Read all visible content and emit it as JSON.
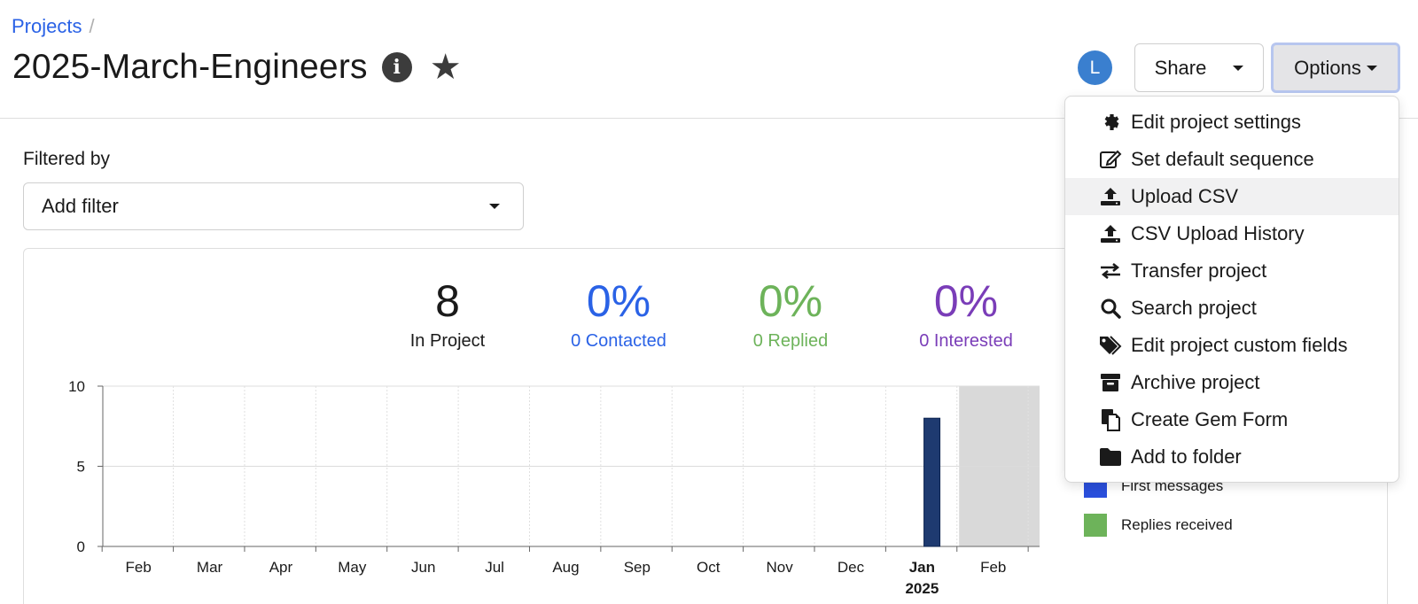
{
  "breadcrumb": {
    "root": "Projects",
    "separator": "/"
  },
  "project": {
    "title": "2025-March-Engineers"
  },
  "header": {
    "avatar_initial": "L",
    "share_label": "Share",
    "options_label": "Options"
  },
  "filter": {
    "label": "Filtered by",
    "placeholder": "Add filter"
  },
  "stats": {
    "in_project": {
      "value": "8",
      "label": "In Project"
    },
    "contacted": {
      "value": "0%",
      "label": "0 Contacted"
    },
    "replied": {
      "value": "0%",
      "label": "0 Replied"
    },
    "interested": {
      "value": "0%",
      "label": "0 Interested"
    }
  },
  "colors": {
    "contacted": "#2a62e6",
    "replied": "#6db35a",
    "interested": "#7a3db8",
    "bar": "#1e3a70"
  },
  "legend": [
    {
      "label": "First messages",
      "color": "#2a4fdc"
    },
    {
      "label": "Replies received",
      "color": "#6db35a"
    }
  ],
  "chart_data": {
    "type": "bar",
    "categories": [
      "Feb",
      "Mar",
      "Apr",
      "May",
      "Jun",
      "Jul",
      "Aug",
      "Sep",
      "Oct",
      "Nov",
      "Dec",
      "Jan",
      "Feb"
    ],
    "year_label": "2025",
    "year_label_under": "Jan",
    "yticks": [
      0,
      5,
      10
    ],
    "ylim": [
      0,
      10
    ],
    "bar": {
      "x_between": [
        "Jan",
        "Feb"
      ],
      "value": 8
    },
    "shaded_region_after": "Feb",
    "grid": true
  },
  "menu": {
    "items": [
      {
        "label": "Edit project settings",
        "icon": "gear-icon"
      },
      {
        "label": "Set default sequence",
        "icon": "edit-icon"
      },
      {
        "label": "Upload CSV",
        "icon": "upload-icon"
      },
      {
        "label": "CSV Upload History",
        "icon": "upload-icon"
      },
      {
        "label": "Transfer project",
        "icon": "transfer-icon"
      },
      {
        "label": "Search project",
        "icon": "search-icon"
      },
      {
        "label": "Edit project custom fields",
        "icon": "tags-icon"
      },
      {
        "label": "Archive project",
        "icon": "archive-icon"
      },
      {
        "label": "Create Gem Form",
        "icon": "copy-icon"
      },
      {
        "label": "Add to folder",
        "icon": "folder-icon"
      }
    ]
  }
}
